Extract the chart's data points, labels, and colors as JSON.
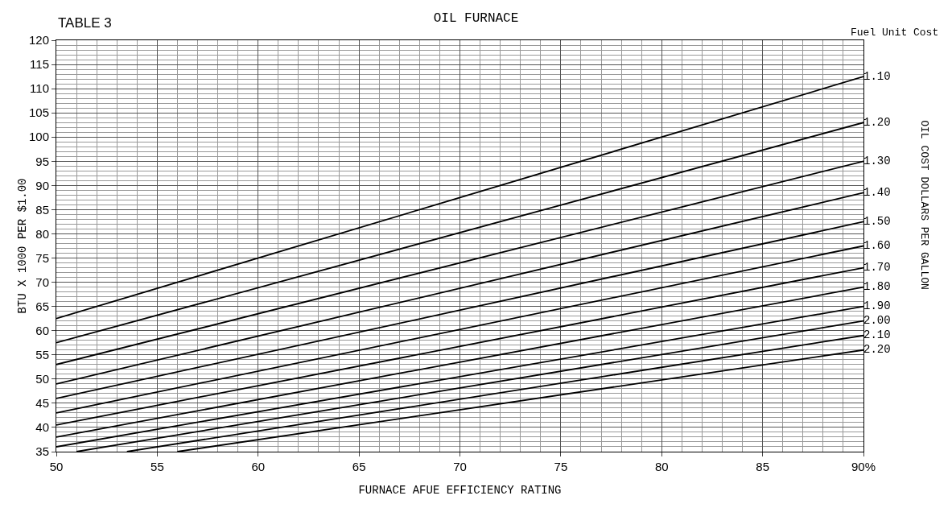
{
  "chart_data": {
    "type": "line",
    "title": "OIL FURNACE",
    "xlabel": "FURNACE AFUE EFFICIENCY RATING",
    "ylabel": "BTU X 1000 PER $1.00",
    "y2label": "OIL COST DOLLARS PER GALLON",
    "legend_title": "Fuel Unit Cost",
    "annotations": [
      "TABLE 3"
    ],
    "xlim": [
      50,
      90
    ],
    "xticks": [
      50,
      55,
      60,
      65,
      70,
      75,
      80,
      85,
      {
        "value": 90,
        "label": "90%"
      }
    ],
    "ylim": [
      35,
      120
    ],
    "yticks": [
      35,
      40,
      45,
      50,
      55,
      60,
      65,
      70,
      75,
      80,
      85,
      90,
      95,
      100,
      105,
      110,
      115,
      120
    ],
    "grid": true,
    "legend": false,
    "marker": "none",
    "line_style": "solid",
    "series": [
      {
        "name": "1.10",
        "color": "#000000",
        "x": [
          50,
          90
        ],
        "values": [
          62.5,
          112.5
        ]
      },
      {
        "name": "1.20",
        "color": "#000000",
        "x": [
          50,
          90
        ],
        "values": [
          57.5,
          103
        ]
      },
      {
        "name": "1.30",
        "color": "#000000",
        "x": [
          50,
          90
        ],
        "values": [
          53,
          95
        ]
      },
      {
        "name": "1.40",
        "color": "#000000",
        "x": [
          50,
          90
        ],
        "values": [
          49,
          88.5
        ]
      },
      {
        "name": "1.50",
        "color": "#000000",
        "x": [
          50,
          90
        ],
        "values": [
          46,
          82.5
        ]
      },
      {
        "name": "1.60",
        "color": "#000000",
        "x": [
          50,
          90
        ],
        "values": [
          43,
          77.5
        ]
      },
      {
        "name": "1.70",
        "color": "#000000",
        "x": [
          50,
          90
        ],
        "values": [
          40.5,
          73
        ]
      },
      {
        "name": "1.80",
        "color": "#000000",
        "x": [
          50,
          90
        ],
        "values": [
          38,
          69
        ]
      },
      {
        "name": "1.90",
        "color": "#000000",
        "x": [
          50,
          90
        ],
        "values": [
          36,
          65
        ]
      },
      {
        "name": "2.00",
        "color": "#000000",
        "x": [
          51,
          90
        ],
        "values": [
          35,
          62
        ]
      },
      {
        "name": "2.10",
        "color": "#000000",
        "x": [
          53.5,
          90
        ],
        "values": [
          35,
          59
        ]
      },
      {
        "name": "2.20",
        "color": "#000000",
        "x": [
          56,
          90
        ],
        "values": [
          35,
          56
        ]
      }
    ]
  }
}
